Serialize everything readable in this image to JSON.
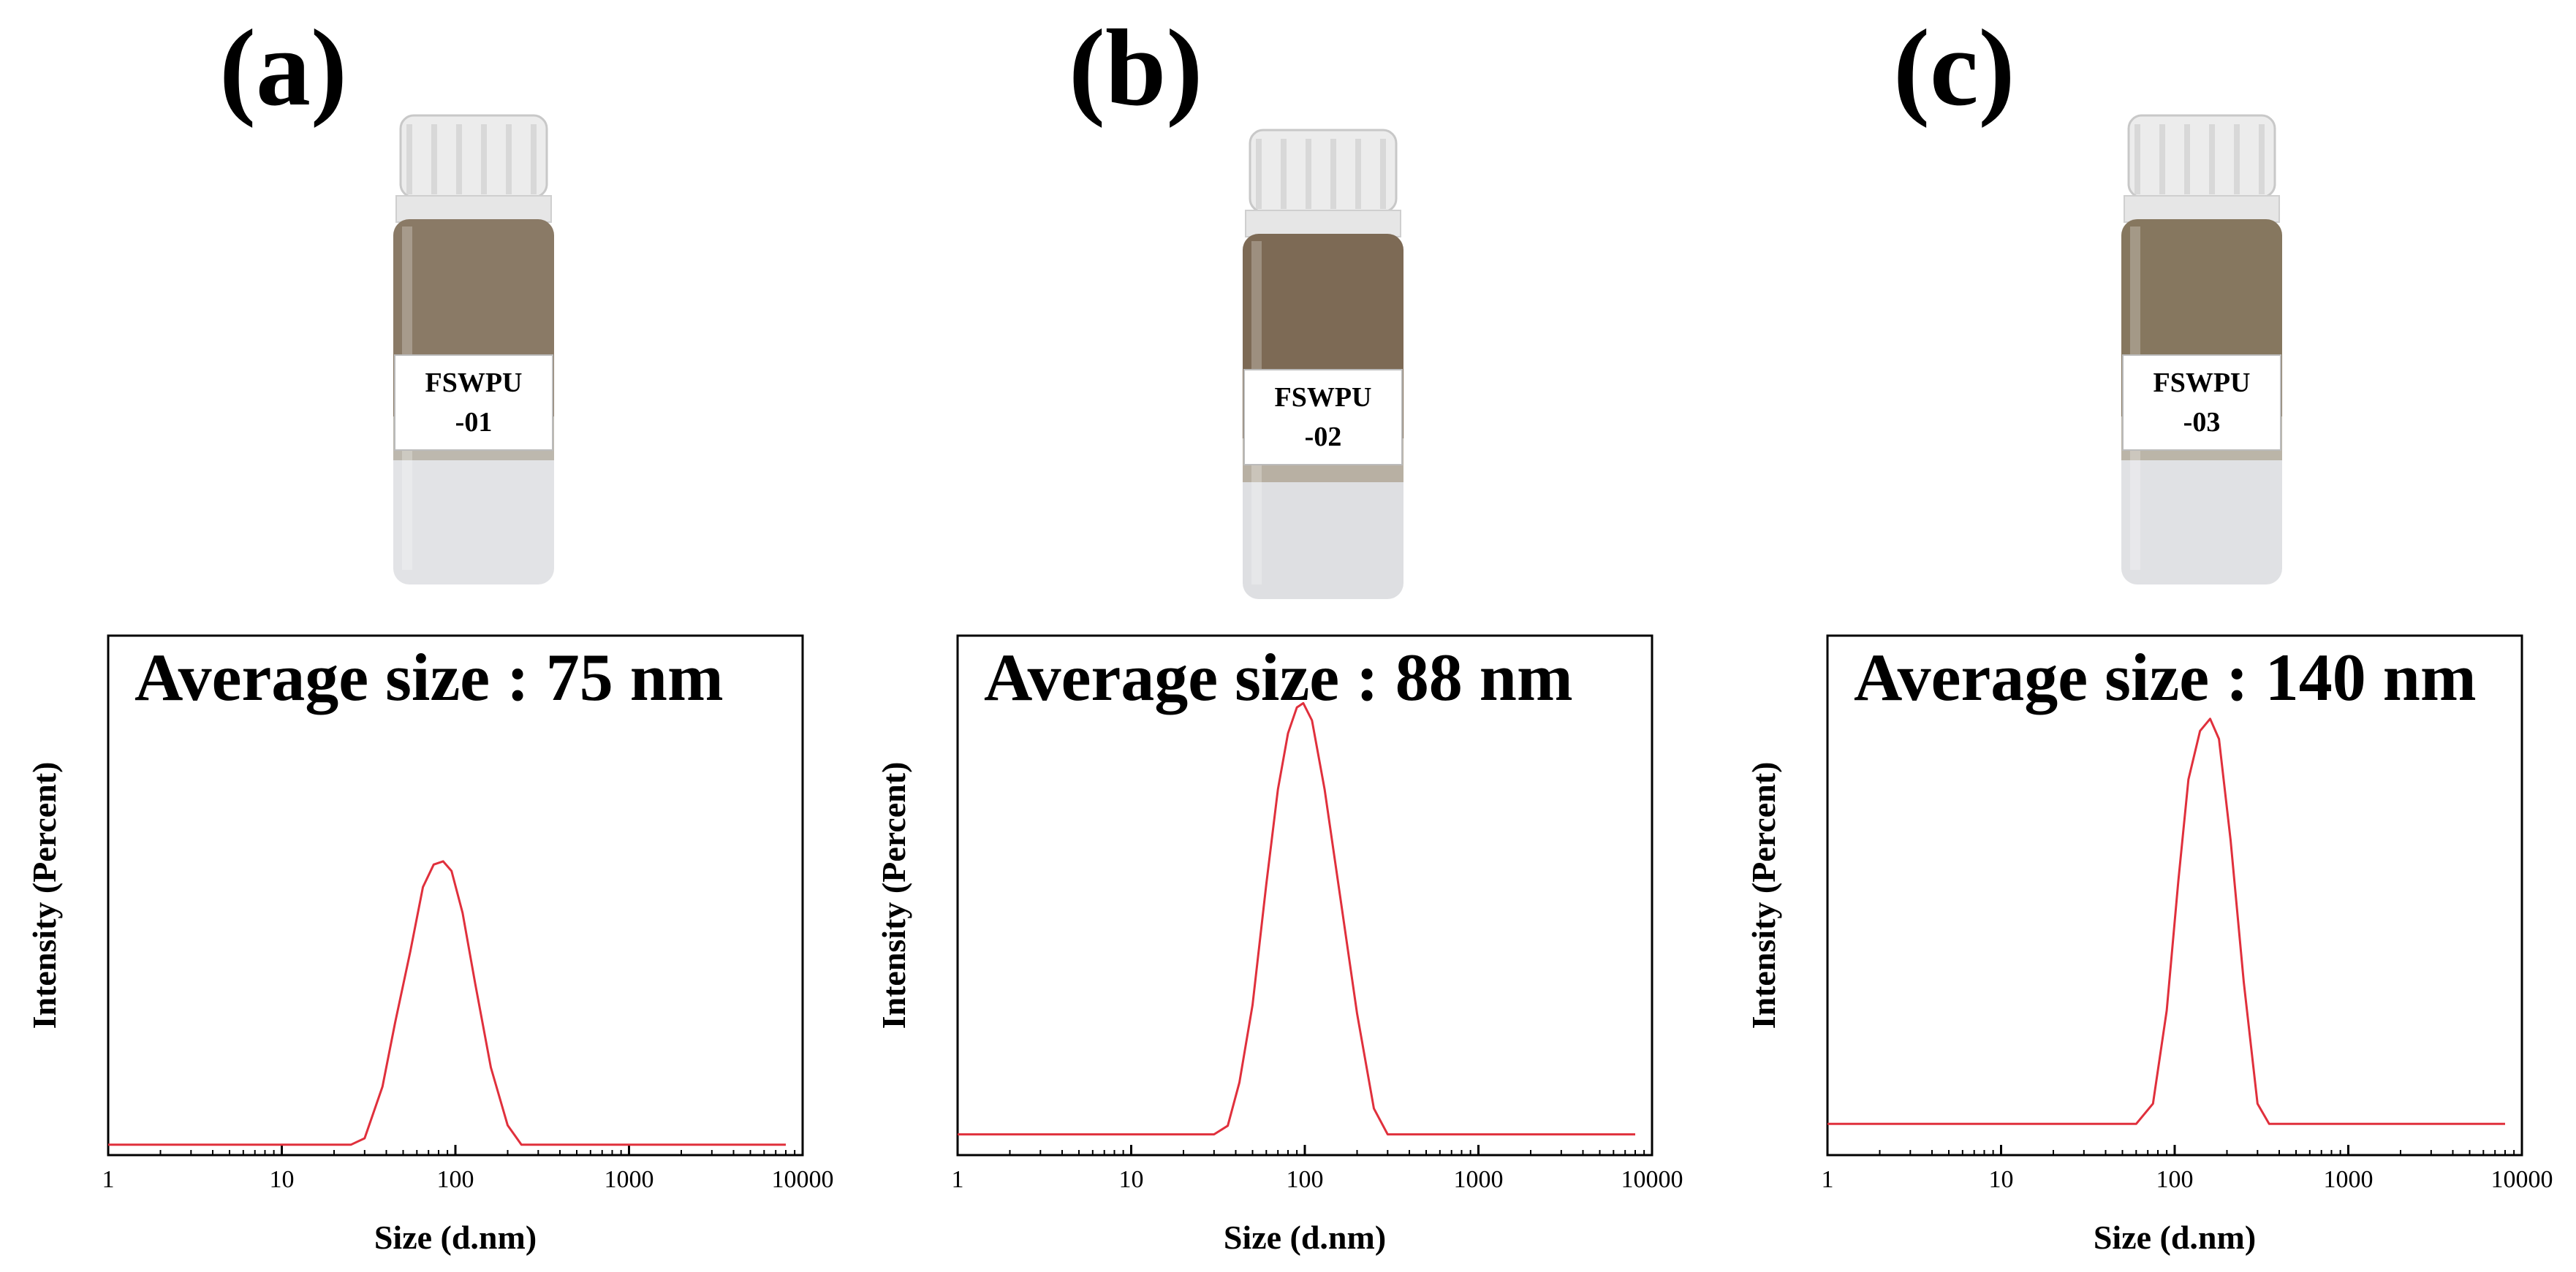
{
  "figure": {
    "panels": [
      {
        "letter": "(a)",
        "label_line1": "FSWPU",
        "label_line2": "-01",
        "annotation": "Average size : 75 nm"
      },
      {
        "letter": "(b)",
        "label_line1": "FSWPU",
        "label_line2": "-02",
        "annotation": "Average size : 88 nm"
      },
      {
        "letter": "(c)",
        "label_line1": "FSWPU",
        "label_line2": "-03",
        "annotation": "Average size : 140 nm"
      }
    ]
  },
  "chart_data": [
    {
      "type": "line",
      "title": "Average size : 75 nm",
      "xlabel": "Size (d.nm)",
      "ylabel": "Intensity (Percent)",
      "xscale": "log",
      "xlim": [
        1,
        10000
      ],
      "ylim": [
        0,
        1
      ],
      "xticks": [
        "1",
        "10",
        "100",
        "1000",
        "10000"
      ],
      "series": [
        {
          "name": "FSWPU-01",
          "color": "#e0303c",
          "x": [
            1,
            25,
            30,
            38,
            45,
            55,
            65,
            75,
            85,
            95,
            110,
            130,
            160,
            200,
            240,
            300,
            1000,
            8000
          ],
          "y": [
            0,
            0,
            0.02,
            0.18,
            0.38,
            0.6,
            0.8,
            0.87,
            0.88,
            0.85,
            0.72,
            0.5,
            0.24,
            0.06,
            0,
            0,
            0,
            0
          ]
        }
      ]
    },
    {
      "type": "line",
      "title": "Average size : 88 nm",
      "xlabel": "Size (d.nm)",
      "ylabel": "Intensity (Percent)",
      "xscale": "log",
      "xlim": [
        1,
        10000
      ],
      "ylim": [
        0,
        1
      ],
      "xticks": [
        "1",
        "10",
        "100",
        "1000",
        "10000"
      ],
      "series": [
        {
          "name": "FSWPU-02",
          "color": "#e0303c",
          "x": [
            1,
            30,
            36,
            42,
            50,
            60,
            70,
            80,
            90,
            98,
            110,
            130,
            160,
            200,
            250,
            300,
            350,
            1000,
            8000
          ],
          "y": [
            0,
            0,
            0.02,
            0.12,
            0.3,
            0.58,
            0.8,
            0.93,
            0.99,
            1.0,
            0.96,
            0.8,
            0.55,
            0.28,
            0.06,
            0,
            0,
            0,
            0
          ]
        }
      ]
    },
    {
      "type": "line",
      "title": "Average size : 140 nm",
      "xlabel": "Size (d.nm)",
      "ylabel": "Intensity (Percent)",
      "xscale": "log",
      "xlim": [
        1,
        10000
      ],
      "ylim": [
        0,
        1
      ],
      "xticks": [
        "1",
        "10",
        "100",
        "1000",
        "10000"
      ],
      "series": [
        {
          "name": "FSWPU-03",
          "color": "#e0303c",
          "x": [
            1,
            60,
            75,
            90,
            105,
            120,
            140,
            160,
            180,
            210,
            250,
            300,
            350,
            1000,
            8000
          ],
          "y": [
            0,
            0,
            0.05,
            0.28,
            0.6,
            0.85,
            0.97,
            1.0,
            0.95,
            0.7,
            0.35,
            0.05,
            0,
            0,
            0
          ]
        }
      ]
    }
  ]
}
